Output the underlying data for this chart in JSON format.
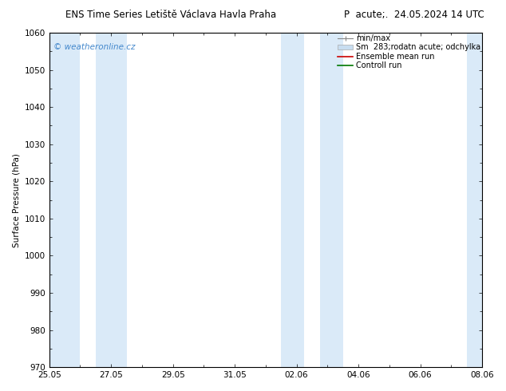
{
  "title_left": "ENS Time Series Letiště Václava Havla Praha",
  "title_right": "P  acute;.  24.05.2024 14 UTC",
  "ylabel": "Surface Pressure (hPa)",
  "ylim": [
    970,
    1060
  ],
  "yticks": [
    970,
    980,
    990,
    1000,
    1010,
    1020,
    1030,
    1040,
    1050,
    1060
  ],
  "xtick_labels": [
    "25.05",
    "27.05",
    "29.05",
    "31.05",
    "02.06",
    "04.06",
    "06.06",
    "08.06"
  ],
  "xtick_positions": [
    0,
    2,
    4,
    6,
    8,
    10,
    12,
    14
  ],
  "x_total_days": 14,
  "shaded_bands": [
    {
      "x_start": 0,
      "x_end": 1.0,
      "color": "#daeaf8"
    },
    {
      "x_start": 1.5,
      "x_end": 2.5,
      "color": "#daeaf8"
    },
    {
      "x_start": 7.5,
      "x_end": 8.25,
      "color": "#daeaf8"
    },
    {
      "x_start": 8.75,
      "x_end": 9.5,
      "color": "#daeaf8"
    },
    {
      "x_start": 13.5,
      "x_end": 14.0,
      "color": "#daeaf8"
    }
  ],
  "watermark": "© weatheronline.cz",
  "watermark_color": "#4488cc",
  "bg_color": "#ffffff",
  "plot_bg_color": "#ffffff",
  "border_color": "#000000",
  "font_size": 7.5,
  "title_font_size": 8.5,
  "legend_font_size": 7.0
}
